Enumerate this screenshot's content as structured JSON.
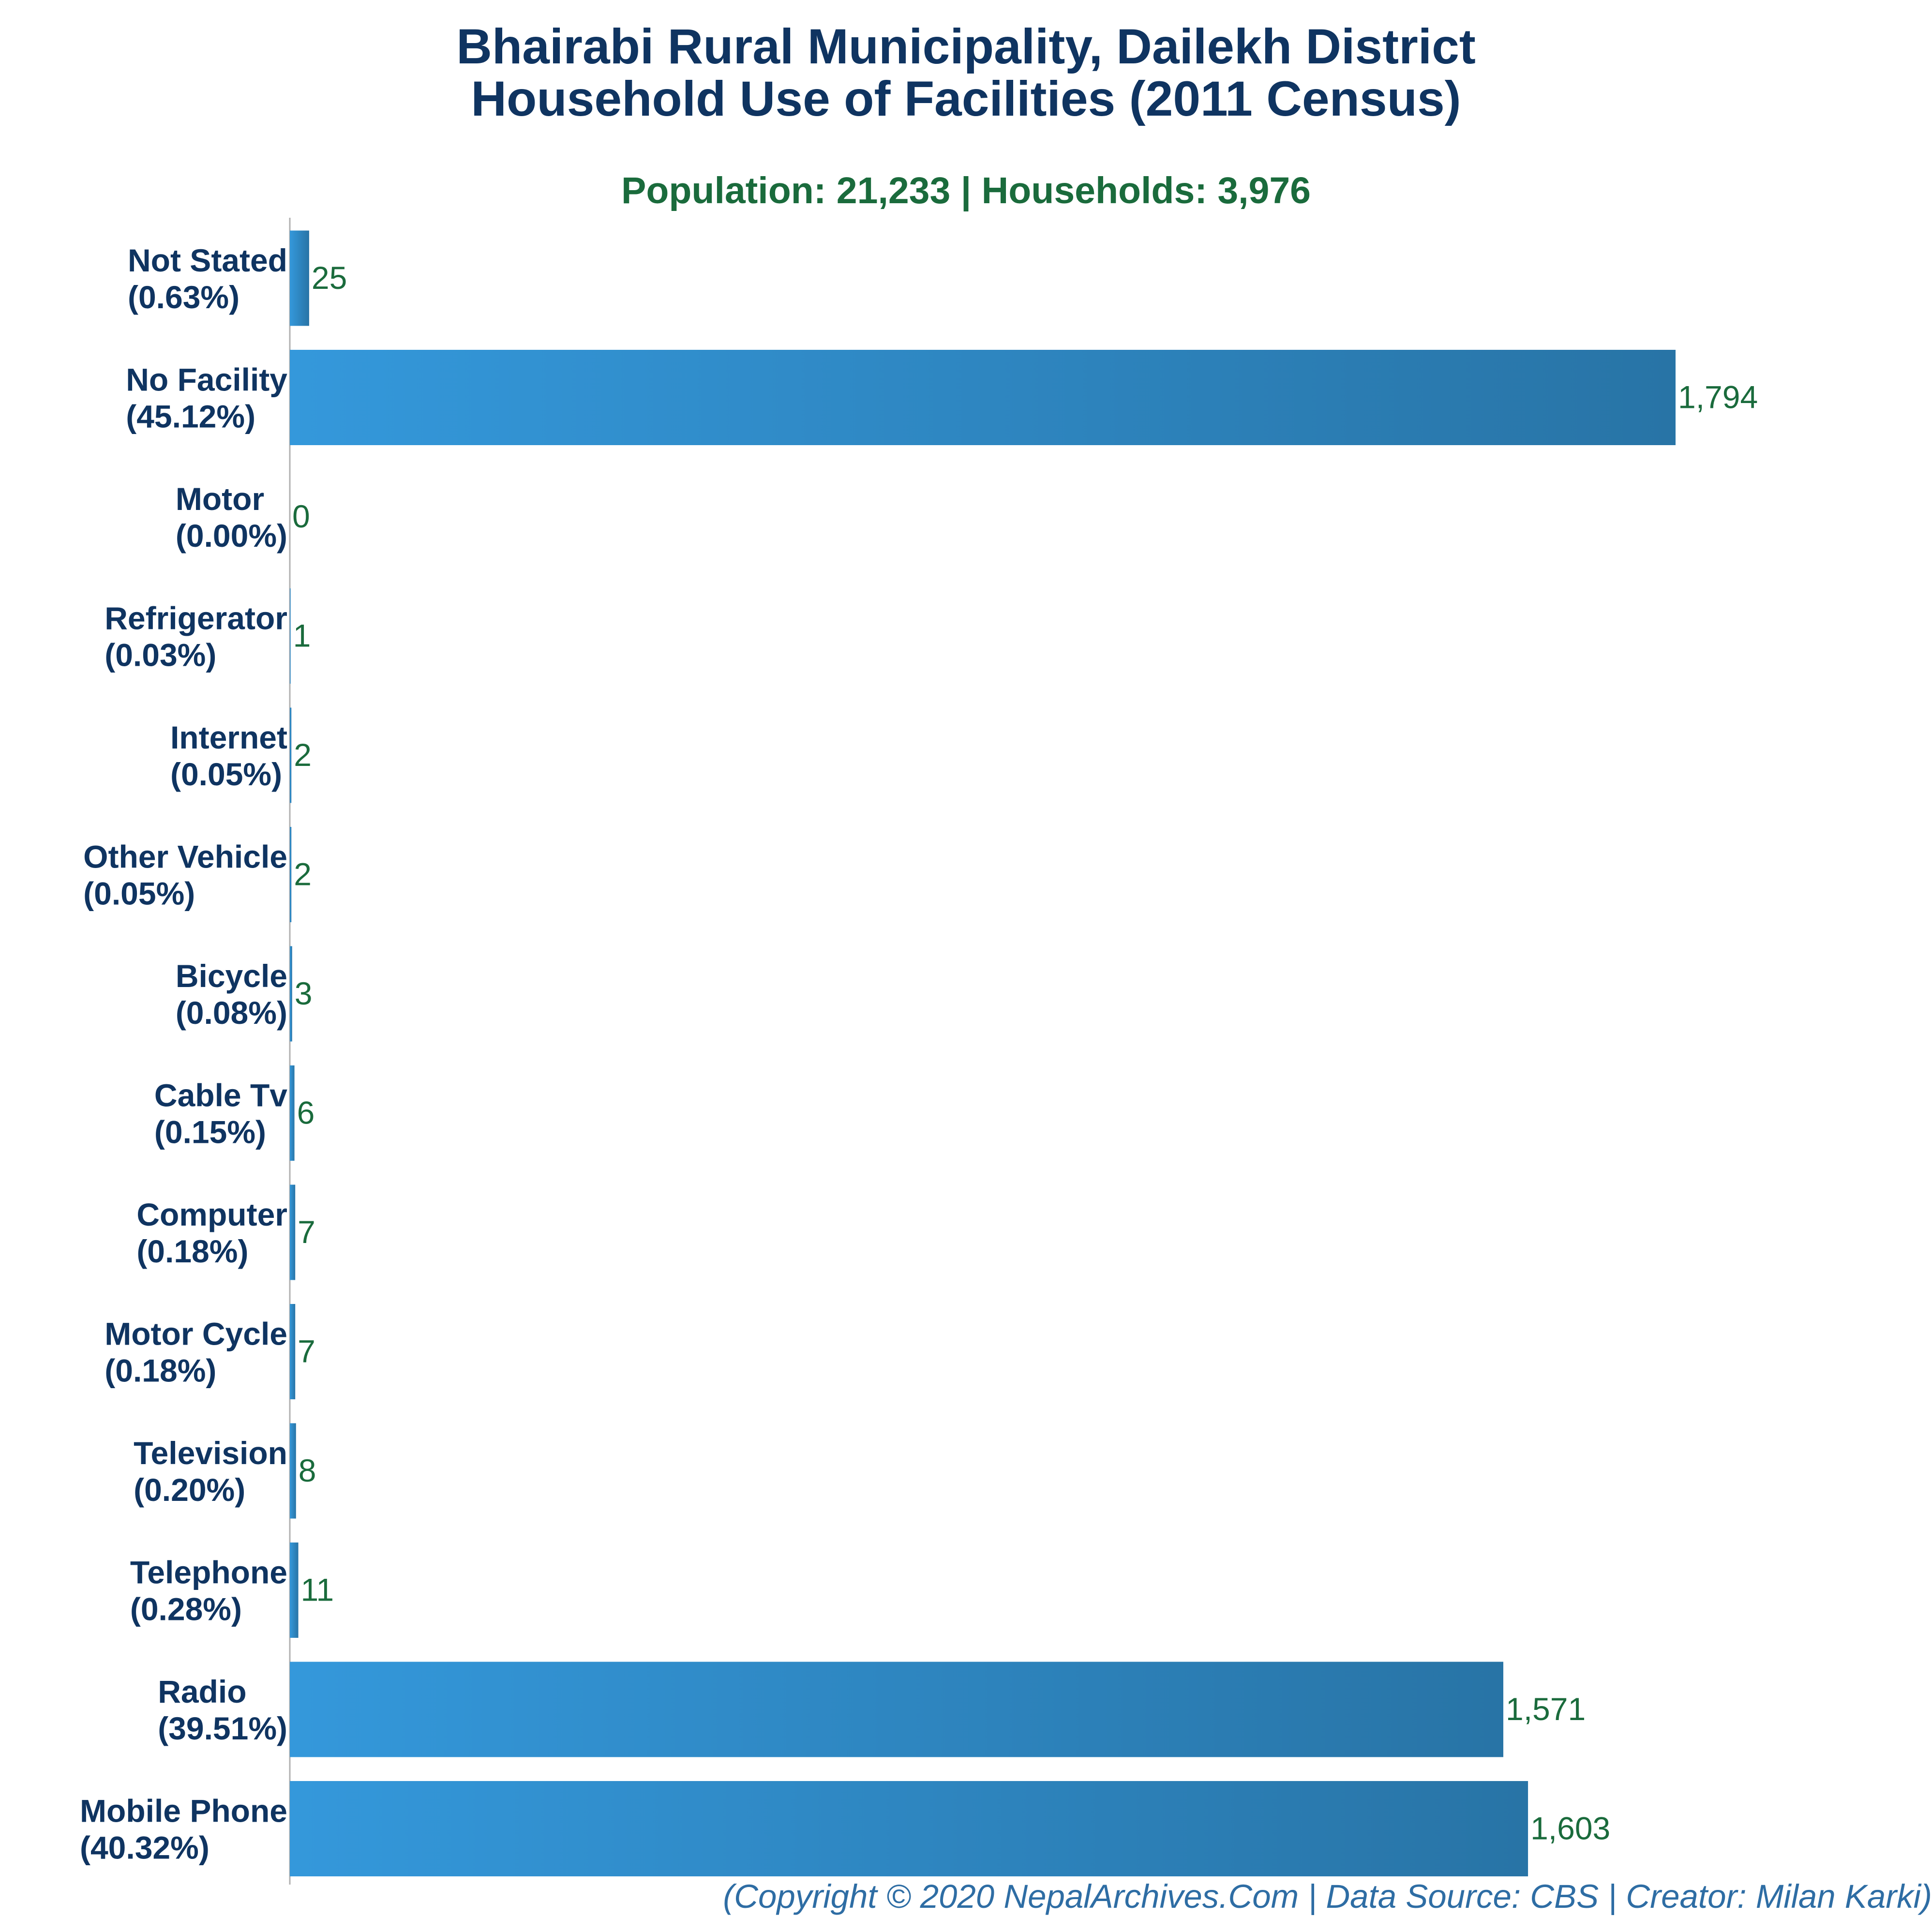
{
  "header": {
    "title_line_1": "Bhairabi Rural Municipality, Dailekh District",
    "title_line_2": "Household Use of Facilities (2011 Census)",
    "subtitle": "Population: 21,233 | Households: 3,976"
  },
  "footer": {
    "credit": "(Copyright © 2020 NepalArchives.Com | Data Source: CBS | Creator: Milan Karki)"
  },
  "colors": {
    "title": "#0f3461",
    "subtitle": "#1a6b3c",
    "category_label": "#0f3461",
    "value_label": "#1a6b3c",
    "bar_gradient_start": "#3498db",
    "bar_gradient_end": "#2874a6",
    "axis": "#b0b0b0",
    "footer": "#2e6da4"
  },
  "chart_data": {
    "type": "bar",
    "orientation": "horizontal",
    "title": "Bhairabi Rural Municipality, Dailekh District Household Use of Facilities (2011 Census)",
    "subtitle": "Population: 21,233 | Households: 3,976",
    "categories": [
      "Not Stated",
      "No Facility",
      "Motor",
      "Refrigerator",
      "Internet",
      "Other Vehicle",
      "Bicycle",
      "Cable Tv",
      "Computer",
      "Motor Cycle",
      "Television",
      "Telephone",
      "Radio",
      "Mobile Phone"
    ],
    "percent_labels": [
      "(0.63%)",
      "(45.12%)",
      "(0.00%)",
      "(0.03%)",
      "(0.05%)",
      "(0.05%)",
      "(0.08%)",
      "(0.15%)",
      "(0.18%)",
      "(0.18%)",
      "(0.20%)",
      "(0.28%)",
      "(39.51%)",
      "(40.32%)"
    ],
    "values": [
      25,
      1794,
      0,
      1,
      2,
      2,
      3,
      6,
      7,
      7,
      8,
      11,
      1571,
      1603
    ],
    "value_labels": [
      "25",
      "1,794",
      "0",
      "1",
      "2",
      "2",
      "3",
      "6",
      "7",
      "7",
      "8",
      "11",
      "1,571",
      "1,603"
    ],
    "xlim": [
      0,
      1794
    ],
    "grid": false,
    "legend": "none"
  }
}
